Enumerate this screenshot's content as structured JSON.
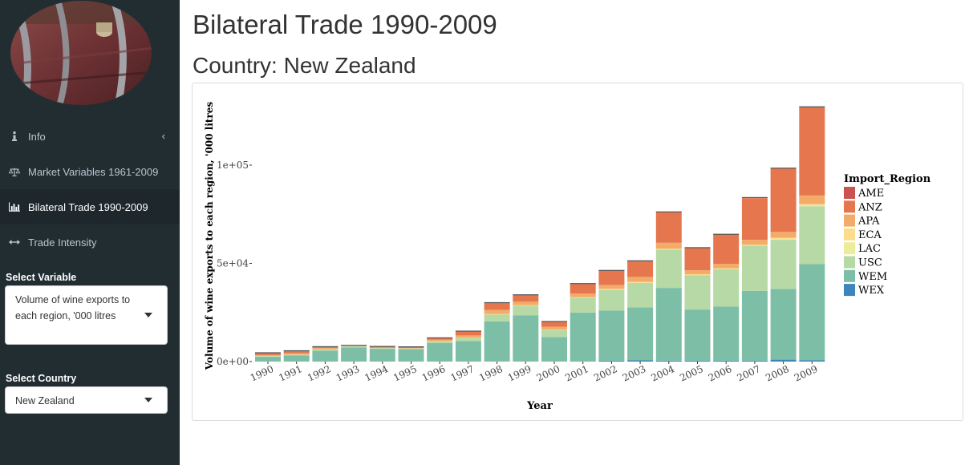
{
  "sidebar": {
    "items": [
      {
        "label": "Info",
        "icon": "info-icon"
      },
      {
        "label": "Market Variables 1961-2009",
        "icon": "balance-scale-icon"
      },
      {
        "label": "Bilateral Trade 1990-2009",
        "icon": "bar-chart-icon"
      },
      {
        "label": "Trade Intensity",
        "icon": "arrows-h-icon"
      }
    ],
    "variable_label": "Select Variable",
    "variable_value_line1": "Volume of wine exports to",
    "variable_value_line2": "each region, '000 litres",
    "country_label": "Select Country",
    "country_value": "New Zealand"
  },
  "main": {
    "title": "Bilateral Trade 1990-2009",
    "subtitle": "Country: New Zealand"
  },
  "chart_data": {
    "type": "bar",
    "stacked": true,
    "xlabel": "Year",
    "ylabel": "Volume of wine exports to each region, '000 litres",
    "ylim": [
      0,
      130000
    ],
    "yticks": [
      0,
      50000,
      100000
    ],
    "ytick_labels": [
      "0e+00",
      "5e+04",
      "1e+05"
    ],
    "legend_title": "Import_Region",
    "legend_position": "right",
    "categories": [
      "1990",
      "1991",
      "1992",
      "1993",
      "1994",
      "1995",
      "1996",
      "1997",
      "1998",
      "1999",
      "2000",
      "2001",
      "2002",
      "2003",
      "2004",
      "2005",
      "2006",
      "2007",
      "2008",
      "2009"
    ],
    "series": [
      {
        "name": "WEX",
        "color": "#3f85bd",
        "values": [
          0,
          0,
          0,
          0,
          0,
          0,
          0,
          0,
          0,
          0,
          0,
          0,
          500,
          600,
          500,
          500,
          500,
          500,
          1000,
          600
        ]
      },
      {
        "name": "WEM",
        "color": "#7dbfa6",
        "values": [
          2500,
          3200,
          5500,
          7200,
          6500,
          6300,
          9500,
          10500,
          20500,
          23500,
          12500,
          25000,
          25500,
          27000,
          37000,
          26000,
          27500,
          35500,
          36000,
          49000
        ]
      },
      {
        "name": "USC",
        "color": "#b6d9a6",
        "values": [
          200,
          300,
          600,
          600,
          300,
          300,
          800,
          1500,
          3500,
          5000,
          3500,
          7500,
          10500,
          12500,
          19500,
          17500,
          19000,
          23000,
          25000,
          29500
        ]
      },
      {
        "name": "LAC",
        "color": "#ecec9d",
        "values": [
          0,
          0,
          0,
          0,
          0,
          0,
          0,
          0,
          0,
          0,
          0,
          0,
          0,
          0,
          0,
          0,
          0,
          0,
          500,
          500
        ]
      },
      {
        "name": "ECA",
        "color": "#fbdd8b",
        "values": [
          100,
          100,
          100,
          100,
          100,
          100,
          100,
          100,
          300,
          300,
          200,
          300,
          500,
          500,
          500,
          500,
          500,
          500,
          500,
          500
        ]
      },
      {
        "name": "APA",
        "color": "#f3ab69",
        "values": [
          500,
          600,
          700,
          100,
          200,
          200,
          700,
          1200,
          2000,
          1700,
          1500,
          1900,
          2000,
          2500,
          3000,
          2000,
          2300,
          2500,
          3000,
          4500
        ]
      },
      {
        "name": "ANZ",
        "color": "#e5764e",
        "values": [
          1200,
          1300,
          700,
          300,
          600,
          600,
          1000,
          2200,
          3700,
          3500,
          2700,
          5000,
          7400,
          8200,
          15500,
          11500,
          15000,
          21200,
          32200,
          44800
        ]
      },
      {
        "name": "AME",
        "color": "#cc5252",
        "values": [
          0,
          0,
          0,
          0,
          0,
          0,
          0,
          0,
          0,
          0,
          0,
          0,
          0,
          0,
          200,
          0,
          0,
          300,
          300,
          300
        ]
      }
    ]
  }
}
